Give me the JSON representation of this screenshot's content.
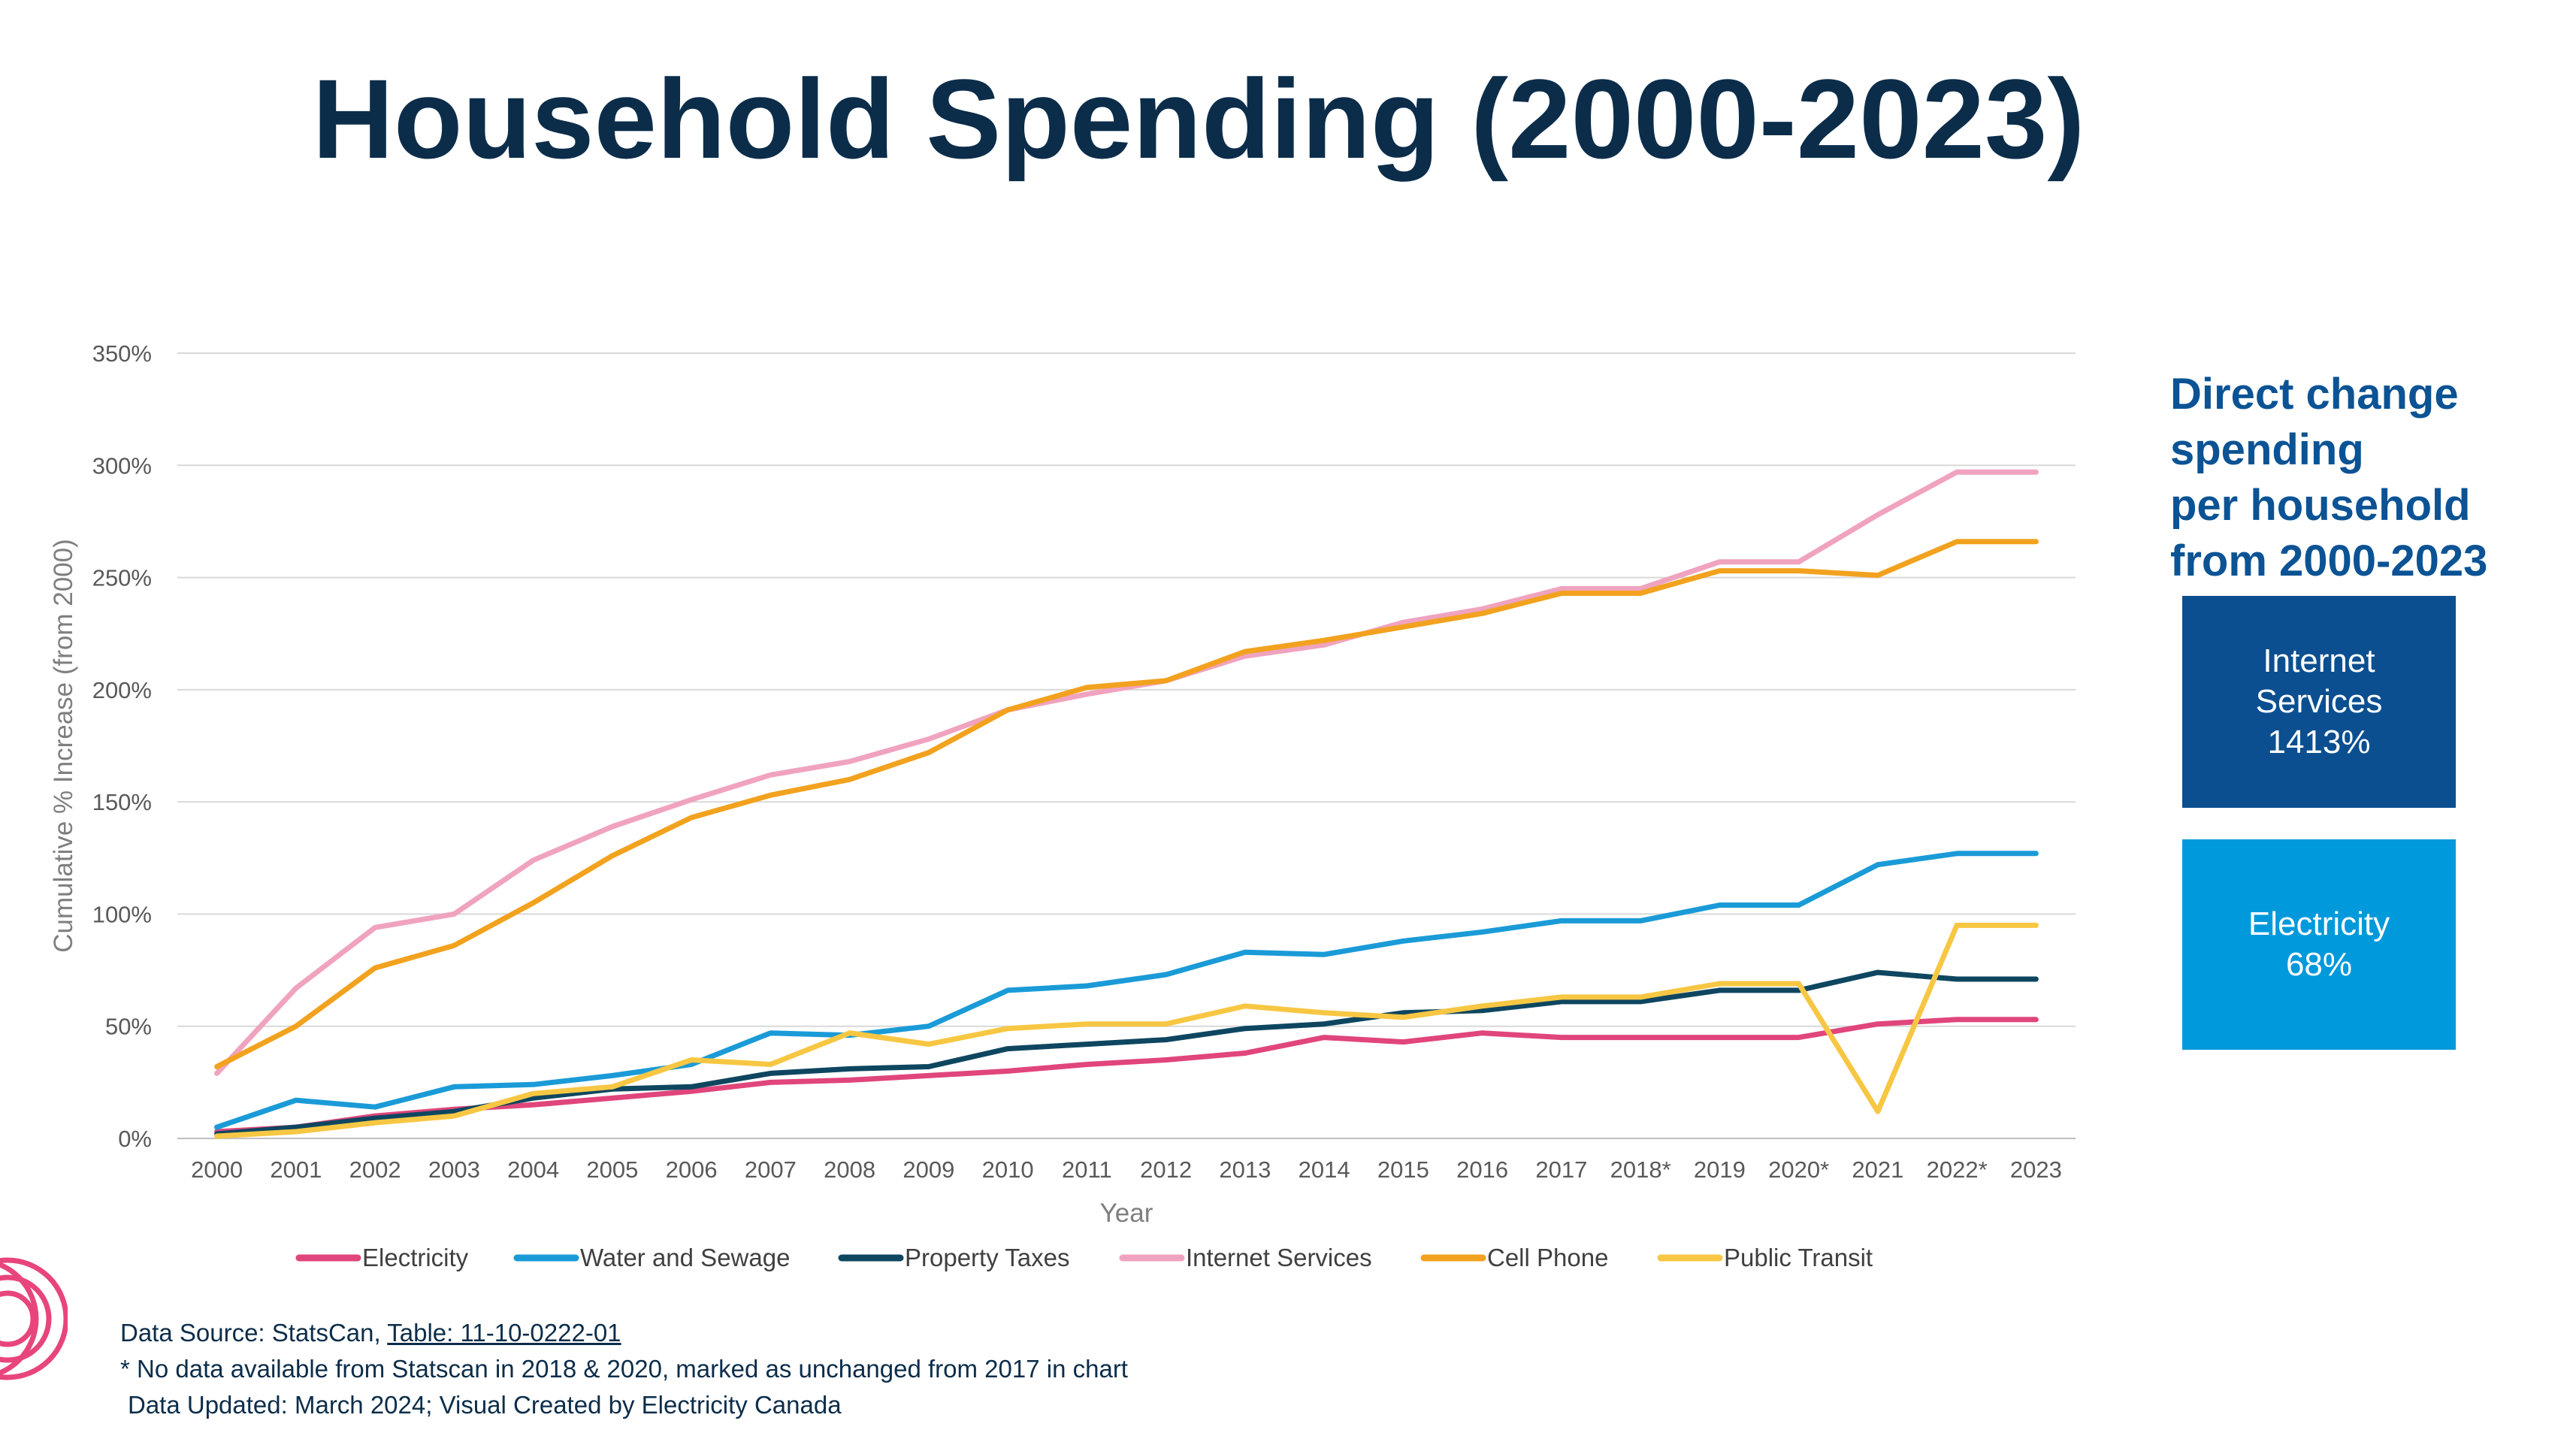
{
  "title": "Household Spending (2000-2023)",
  "colors": {
    "title": "#0c2d4a",
    "side_heading": "#0b5394",
    "box_internet": "#0b4f91",
    "box_electricity": "#0099db",
    "logo": "#e8457c"
  },
  "chart_data": {
    "type": "line",
    "title": "",
    "xlabel": "Year",
    "ylabel": "Cumulative % Increase (from 2000)",
    "ylim": [
      0,
      350
    ],
    "yticks": [
      0,
      50,
      100,
      150,
      200,
      250,
      300,
      350
    ],
    "ytick_labels": [
      "0%",
      "50%",
      "100%",
      "150%",
      "200%",
      "250%",
      "300%",
      "350%"
    ],
    "categories": [
      "2000",
      "2001",
      "2002",
      "2003",
      "2004",
      "2005",
      "2006",
      "2007",
      "2008",
      "2009",
      "2010",
      "2011",
      "2012",
      "2013",
      "2014",
      "2015",
      "2016",
      "2017",
      "2018*",
      "2019",
      "2020*",
      "2021",
      "2022*",
      "2023"
    ],
    "grid": "horizontal",
    "legend_position": "bottom",
    "series": [
      {
        "name": "Electricity",
        "color": "#e0457b",
        "values": [
          3,
          5,
          10,
          13,
          15,
          18,
          21,
          25,
          26,
          28,
          30,
          33,
          35,
          38,
          45,
          43,
          47,
          45,
          45,
          45,
          45,
          51,
          53,
          53
        ]
      },
      {
        "name": "Water and Sewage",
        "color": "#1a9bd7",
        "values": [
          5,
          17,
          14,
          23,
          24,
          28,
          33,
          47,
          46,
          50,
          66,
          68,
          73,
          83,
          82,
          88,
          92,
          97,
          97,
          104,
          104,
          122,
          127,
          127
        ]
      },
      {
        "name": "Property Taxes",
        "color": "#0e4660",
        "values": [
          2,
          5,
          9,
          12,
          18,
          22,
          23,
          29,
          31,
          32,
          40,
          42,
          44,
          49,
          51,
          56,
          57,
          61,
          61,
          66,
          66,
          74,
          71,
          71
        ]
      },
      {
        "name": "Internet Services",
        "color": "#f0a3bf",
        "values": [
          29,
          67,
          94,
          100,
          124,
          139,
          151,
          162,
          168,
          178,
          191,
          198,
          204,
          215,
          220,
          230,
          236,
          245,
          245,
          257,
          257,
          278,
          297,
          297
        ]
      },
      {
        "name": "Cell Phone",
        "color": "#f2a21e",
        "values": [
          32,
          50,
          76,
          86,
          105,
          126,
          143,
          153,
          160,
          172,
          191,
          201,
          204,
          217,
          222,
          228,
          234,
          243,
          243,
          253,
          253,
          251,
          266,
          266
        ]
      },
      {
        "name": "Public Transit",
        "color": "#f7c743",
        "values": [
          1,
          3,
          7,
          10,
          20,
          23,
          35,
          33,
          47,
          42,
          49,
          51,
          51,
          59,
          56,
          54,
          59,
          63,
          63,
          69,
          69,
          12,
          95,
          95
        ]
      }
    ]
  },
  "side_panel": {
    "heading_lines": [
      "Direct change",
      "spending",
      "per household",
      "from 2000-2023"
    ],
    "internet": {
      "line1": "Internet",
      "line2": "Services",
      "line3": "1413%"
    },
    "electricity": {
      "line1": "Electricity",
      "line2": "68%"
    }
  },
  "footer": {
    "source_prefix": "Data Source: StatsCan, ",
    "source_link": "Table: 11-10-0222-01",
    "note": "* No data available from Statscan in 2018 & 2020, marked as unchanged from 2017 in chart",
    "updated": "Data Updated: March 2024; Visual Created by Electricity Canada"
  }
}
